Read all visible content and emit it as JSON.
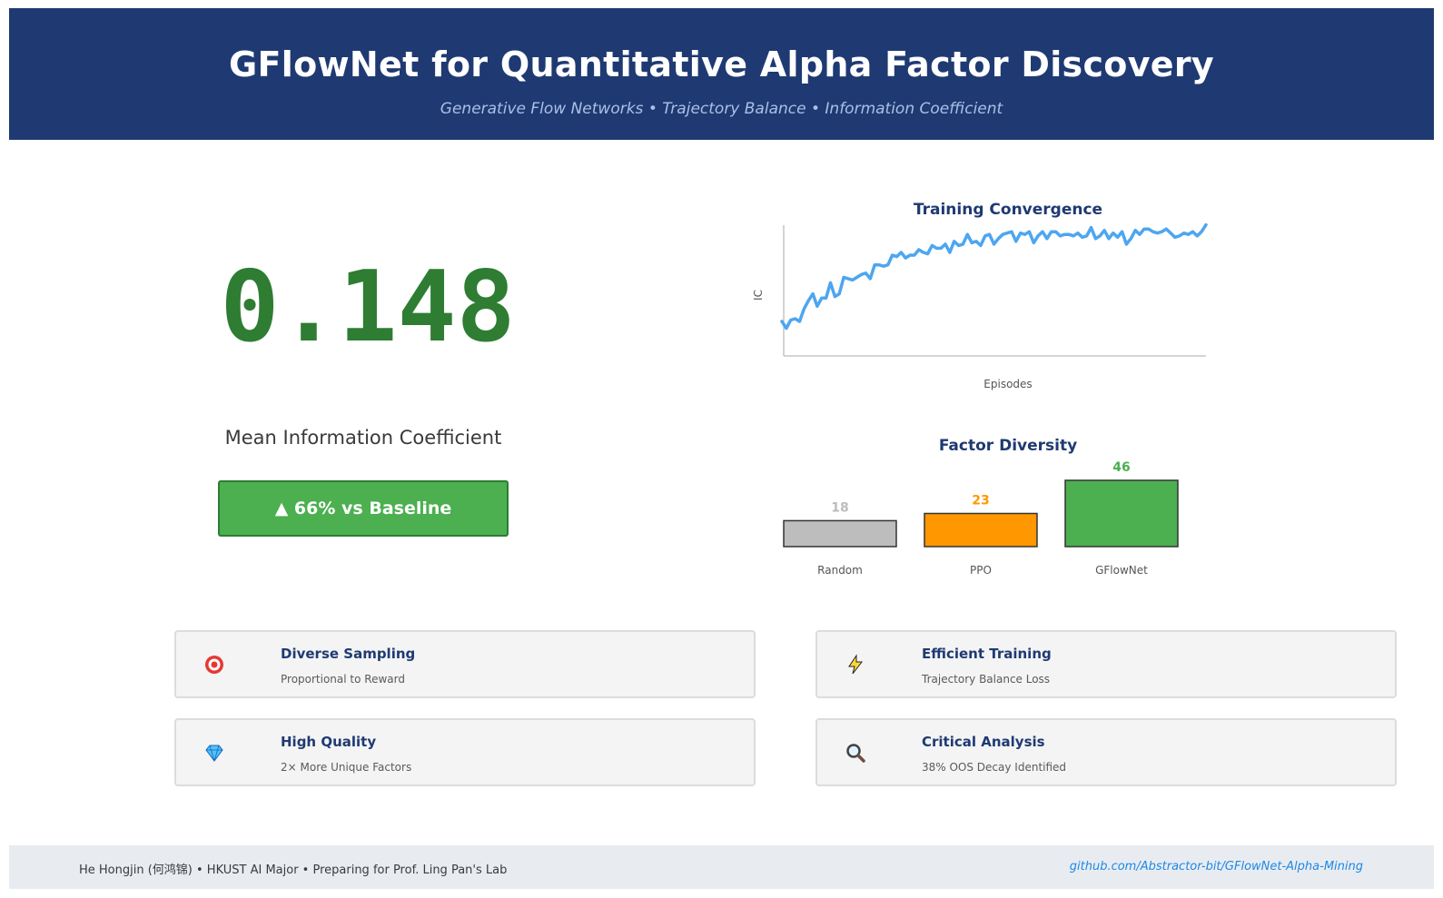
{
  "header": {
    "title": "GFlowNet for Quantitative Alpha Factor Discovery",
    "subtitle": "Generative Flow Networks • Trajectory Balance • Information Coefficient"
  },
  "metric": {
    "value": "0.148",
    "label": "Mean Information Coefficient",
    "badge": "▲ 66% vs Baseline",
    "color": "#2e7d32",
    "badge_color": "#4caf50"
  },
  "chart_data": [
    {
      "type": "line",
      "title": "Training Convergence",
      "xlabel": "Episodes",
      "ylabel": "IC",
      "grid": false,
      "series": [
        {
          "color": "#4da6f0",
          "values": [
            0.03,
            0.02,
            0.032,
            0.034,
            0.03,
            0.048,
            0.06,
            0.07,
            0.052,
            0.064,
            0.064,
            0.086,
            0.066,
            0.07,
            0.094,
            0.092,
            0.09,
            0.094,
            0.098,
            0.1,
            0.092,
            0.112,
            0.112,
            0.11,
            0.112,
            0.126,
            0.124,
            0.13,
            0.122,
            0.126,
            0.126,
            0.134,
            0.13,
            0.128,
            0.14,
            0.136,
            0.136,
            0.142,
            0.13,
            0.146,
            0.14,
            0.142,
            0.156,
            0.144,
            0.146,
            0.14,
            0.154,
            0.156,
            0.142,
            0.15,
            0.156,
            0.158,
            0.16,
            0.146,
            0.158,
            0.156,
            0.16,
            0.144,
            0.154,
            0.16,
            0.15,
            0.16,
            0.16,
            0.154,
            0.156,
            0.156,
            0.154,
            0.158,
            0.152,
            0.154,
            0.166,
            0.15,
            0.154,
            0.162,
            0.15,
            0.158,
            0.152,
            0.16,
            0.142,
            0.15,
            0.162,
            0.156,
            0.164,
            0.164,
            0.16,
            0.158,
            0.16,
            0.164,
            0.158,
            0.152,
            0.154,
            0.158,
            0.156,
            0.16,
            0.154,
            0.16,
            0.17
          ]
        }
      ],
      "ylim": [
        -0.02,
        0.18
      ]
    },
    {
      "type": "bar",
      "title": "Factor Diversity",
      "categories": [
        "Random",
        "PPO",
        "GFlowNet"
      ],
      "values": [
        18,
        23,
        46
      ],
      "colors": [
        "#bdbdbd",
        "#ff9800",
        "#4caf50"
      ],
      "label_colors": [
        "#bdbdbd",
        "#ff9800",
        "#4caf50"
      ],
      "ylim": [
        0,
        46
      ]
    }
  ],
  "cards": [
    {
      "icon": "target-icon",
      "title": "Diverse Sampling",
      "desc": "Proportional to Reward"
    },
    {
      "icon": "lightning-icon",
      "title": "Efficient Training",
      "desc": "Trajectory Balance Loss"
    },
    {
      "icon": "diamond-icon",
      "title": "High Quality",
      "desc": "2× More Unique Factors"
    },
    {
      "icon": "magnifier-icon",
      "title": "Critical Analysis",
      "desc": "38% OOS Decay Identified"
    }
  ],
  "footer": {
    "left": "He Hongjin (何鸿锦) • HKUST AI Major • Preparing for Prof. Ling Pan's Lab",
    "right": "github.com/Abstractor-bit/GFlowNet-Alpha-Mining"
  }
}
